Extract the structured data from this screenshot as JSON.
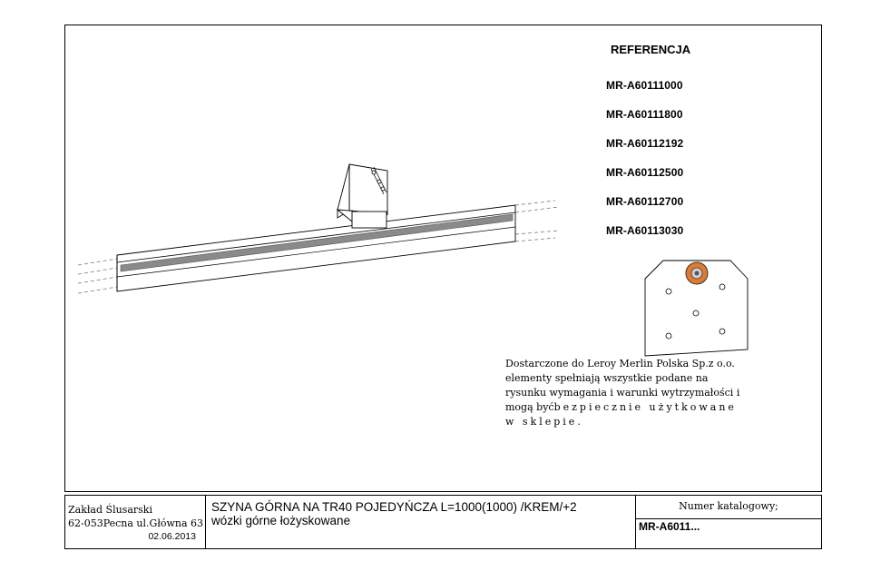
{
  "references": {
    "title": "REFERENCJA",
    "items": [
      "MR-A60111000",
      "MR-A60111800",
      "MR-A60112192",
      "MR-A60112500",
      "MR-A60112700",
      "MR-A60113030"
    ]
  },
  "note": {
    "line1": "Dostarczone do Leroy Merlin Polska Sp.z o.o.",
    "line2": "elementy spełniają wszystkie podane na",
    "line3": "rysunku wymagania i warunki wytrzymałości i",
    "line4a": "mogą być",
    "line4b": "bezpiecznie użytkowane",
    "line5": "w sklepie."
  },
  "title_block": {
    "company_name": "Zakład Ślusarski",
    "company_address": "62-053Pecna ul.Główna 63",
    "date": "02.06.2013",
    "description_line1": "SZYNA GÓRNA NA TR40 POJEDYŃCZA L=1000(1000) /KREM/+2",
    "description_line2": "wózki górne łożyskowane",
    "catalog_label": "Numer katalogowy;",
    "catalog_value": "MR-A6011..."
  },
  "colors": {
    "roller_accent": "#e07a2e",
    "rail_stripe": "#8a8a8a",
    "line": "#000000"
  }
}
